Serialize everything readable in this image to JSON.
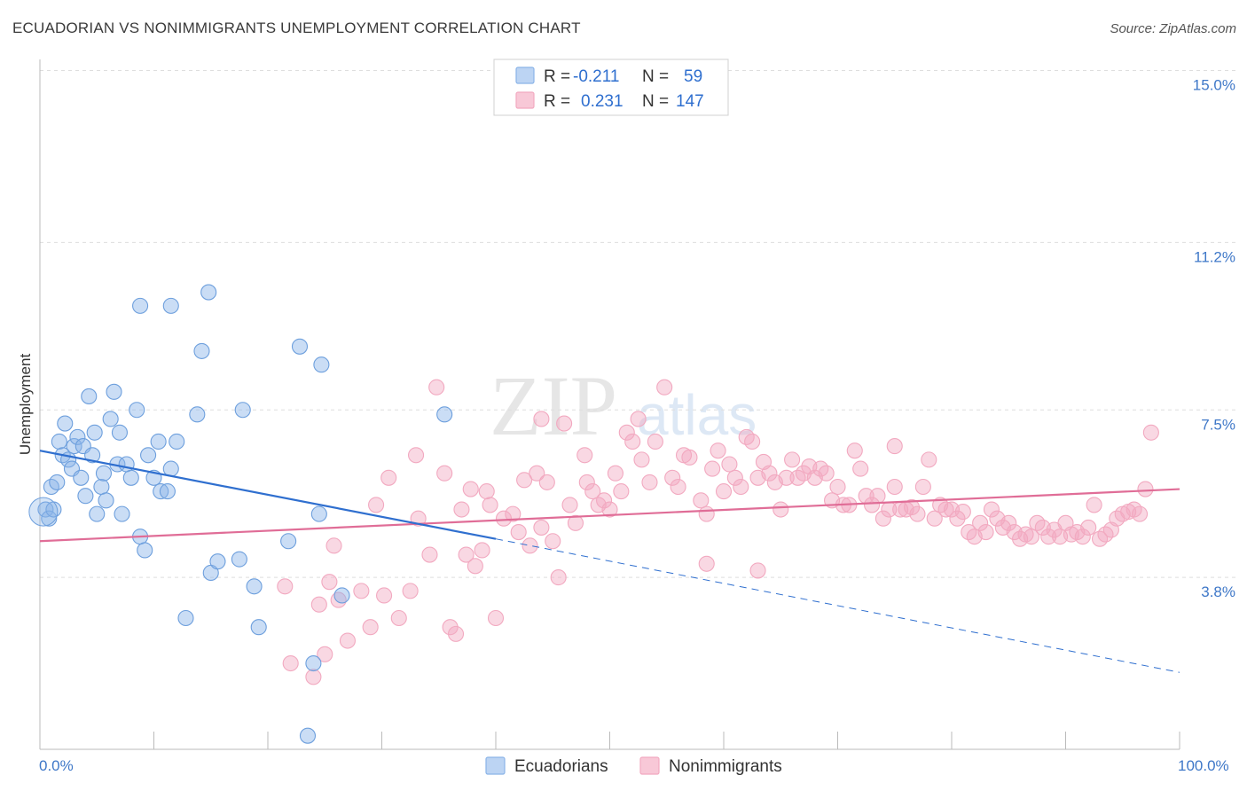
{
  "header": {
    "title": "ECUADORIAN VS NONIMMIGRANTS UNEMPLOYMENT CORRELATION CHART",
    "source": "Source: ZipAtlas.com"
  },
  "watermark": {
    "zip": "ZIP",
    "atlas": "atlas"
  },
  "legend": {
    "rows": [
      {
        "r_label": "R =",
        "r_value": "-0.211",
        "n_label": "N =",
        "n_value": "59"
      },
      {
        "r_label": "R =",
        "r_value": "0.231",
        "n_label": "N =",
        "n_value": "147"
      }
    ]
  },
  "chart_data": {
    "type": "scatter",
    "ylabel": "Unemployment",
    "xlim": [
      0,
      100
    ],
    "ylim": [
      0,
      15
    ],
    "x_tick_labels": [
      "0.0%",
      "100.0%"
    ],
    "y_ticks": [
      {
        "value": 3.8,
        "label": "3.8%"
      },
      {
        "value": 7.5,
        "label": "7.5%"
      },
      {
        "value": 11.2,
        "label": "11.2%"
      },
      {
        "value": 15.0,
        "label": "15.0%"
      }
    ],
    "grid": true,
    "colors": {
      "ecuadorians": "#8ab4e8",
      "ecuadorians_line": "#2f6fcf",
      "nonimmigrants": "#f2a9c0",
      "nonimmigrants_line": "#e06d97"
    },
    "series": [
      {
        "name": "Ecuadorians",
        "trend": {
          "x0": 0,
          "y0": 6.6,
          "x1": 40,
          "y1": 4.65,
          "dash_to_x": 100,
          "dash_to_y": 1.7
        },
        "points": [
          [
            0.5,
            5.3
          ],
          [
            0.8,
            5.1
          ],
          [
            1.0,
            5.8
          ],
          [
            1.2,
            5.3
          ],
          [
            1.5,
            5.9
          ],
          [
            1.7,
            6.8
          ],
          [
            2.0,
            6.5
          ],
          [
            2.2,
            7.2
          ],
          [
            2.5,
            6.4
          ],
          [
            2.8,
            6.2
          ],
          [
            3.0,
            6.7
          ],
          [
            3.3,
            6.9
          ],
          [
            3.6,
            6.0
          ],
          [
            3.8,
            6.7
          ],
          [
            4.0,
            5.6
          ],
          [
            4.3,
            7.8
          ],
          [
            4.6,
            6.5
          ],
          [
            4.8,
            7.0
          ],
          [
            5.0,
            5.2
          ],
          [
            5.4,
            5.8
          ],
          [
            5.6,
            6.1
          ],
          [
            5.8,
            5.5
          ],
          [
            6.2,
            7.3
          ],
          [
            6.5,
            7.9
          ],
          [
            6.8,
            6.3
          ],
          [
            7.0,
            7.0
          ],
          [
            7.2,
            5.2
          ],
          [
            7.6,
            6.3
          ],
          [
            8.0,
            6.0
          ],
          [
            8.5,
            7.5
          ],
          [
            8.8,
            4.7
          ],
          [
            9.2,
            4.4
          ],
          [
            9.5,
            6.5
          ],
          [
            10.0,
            6.0
          ],
          [
            10.4,
            6.8
          ],
          [
            10.6,
            5.7
          ],
          [
            11.2,
            5.7
          ],
          [
            11.5,
            6.2
          ],
          [
            12.0,
            6.8
          ],
          [
            12.8,
            2.9
          ],
          [
            13.8,
            7.4
          ],
          [
            14.2,
            8.8
          ],
          [
            15.0,
            3.9
          ],
          [
            15.6,
            4.15
          ],
          [
            17.5,
            4.2
          ],
          [
            17.8,
            7.5
          ],
          [
            18.8,
            3.6
          ],
          [
            19.2,
            2.7
          ],
          [
            21.8,
            4.6
          ],
          [
            22.8,
            8.9
          ],
          [
            23.5,
            0.3
          ],
          [
            24.0,
            1.9
          ],
          [
            24.5,
            5.2
          ],
          [
            24.7,
            8.5
          ],
          [
            26.5,
            3.4
          ],
          [
            35.5,
            7.4
          ],
          [
            8.8,
            9.8
          ],
          [
            11.5,
            9.8
          ],
          [
            14.8,
            10.1
          ]
        ]
      },
      {
        "name": "Nonimmigrants",
        "trend": {
          "x0": 0,
          "y0": 4.6,
          "x1": 100,
          "y1": 5.75
        },
        "points": [
          [
            21.5,
            3.6
          ],
          [
            22.0,
            1.9
          ],
          [
            24.0,
            1.6
          ],
          [
            24.5,
            3.2
          ],
          [
            25.0,
            2.1
          ],
          [
            25.4,
            3.7
          ],
          [
            25.8,
            4.5
          ],
          [
            26.2,
            3.3
          ],
          [
            27.0,
            2.4
          ],
          [
            28.2,
            3.5
          ],
          [
            29.0,
            2.7
          ],
          [
            29.5,
            5.4
          ],
          [
            30.2,
            3.4
          ],
          [
            30.6,
            6.0
          ],
          [
            31.5,
            2.9
          ],
          [
            32.5,
            3.5
          ],
          [
            33.2,
            5.1
          ],
          [
            34.2,
            4.3
          ],
          [
            34.8,
            8.0
          ],
          [
            35.5,
            6.1
          ],
          [
            36.0,
            2.7
          ],
          [
            36.5,
            2.55
          ],
          [
            37.4,
            4.3
          ],
          [
            37.8,
            5.75
          ],
          [
            38.2,
            4.05
          ],
          [
            38.8,
            4.4
          ],
          [
            39.2,
            5.7
          ],
          [
            39.5,
            5.4
          ],
          [
            40.0,
            2.9
          ],
          [
            40.7,
            5.1
          ],
          [
            41.5,
            5.2
          ],
          [
            42.0,
            4.8
          ],
          [
            42.5,
            5.95
          ],
          [
            43.0,
            4.5
          ],
          [
            43.6,
            6.1
          ],
          [
            44.0,
            4.9
          ],
          [
            44.5,
            5.9
          ],
          [
            45.0,
            4.6
          ],
          [
            45.5,
            3.8
          ],
          [
            46.0,
            7.2
          ],
          [
            46.5,
            5.4
          ],
          [
            47.0,
            5.0
          ],
          [
            47.8,
            6.5
          ],
          [
            48.0,
            5.9
          ],
          [
            48.5,
            5.7
          ],
          [
            49.0,
            5.4
          ],
          [
            49.5,
            5.5
          ],
          [
            50.0,
            5.3
          ],
          [
            50.5,
            6.1
          ],
          [
            51.0,
            5.7
          ],
          [
            51.5,
            7.0
          ],
          [
            52.0,
            6.8
          ],
          [
            52.5,
            7.3
          ],
          [
            52.8,
            6.4
          ],
          [
            53.5,
            5.9
          ],
          [
            54.0,
            6.8
          ],
          [
            54.8,
            8.0
          ],
          [
            55.5,
            6.0
          ],
          [
            56.0,
            5.8
          ],
          [
            56.5,
            6.5
          ],
          [
            57.0,
            6.45
          ],
          [
            58.0,
            5.5
          ],
          [
            58.5,
            5.2
          ],
          [
            59.0,
            6.2
          ],
          [
            59.5,
            6.6
          ],
          [
            60.0,
            5.7
          ],
          [
            60.5,
            6.3
          ],
          [
            61.0,
            6.0
          ],
          [
            61.5,
            5.8
          ],
          [
            62.0,
            6.9
          ],
          [
            62.5,
            6.8
          ],
          [
            63.0,
            6.0
          ],
          [
            63.5,
            6.35
          ],
          [
            64.0,
            6.1
          ],
          [
            64.5,
            5.9
          ],
          [
            65.0,
            5.3
          ],
          [
            65.5,
            6.0
          ],
          [
            66.0,
            6.4
          ],
          [
            66.5,
            6.0
          ],
          [
            67.0,
            6.1
          ],
          [
            67.5,
            6.25
          ],
          [
            68.0,
            6.0
          ],
          [
            68.5,
            6.2
          ],
          [
            69.0,
            6.1
          ],
          [
            69.5,
            5.5
          ],
          [
            70.0,
            5.8
          ],
          [
            70.5,
            5.4
          ],
          [
            71.0,
            5.4
          ],
          [
            71.5,
            6.6
          ],
          [
            72.0,
            6.2
          ],
          [
            72.5,
            5.6
          ],
          [
            73.0,
            5.4
          ],
          [
            73.5,
            5.6
          ],
          [
            74.0,
            5.1
          ],
          [
            74.5,
            5.3
          ],
          [
            75.0,
            5.8
          ],
          [
            75.5,
            5.3
          ],
          [
            76.0,
            5.3
          ],
          [
            76.5,
            5.35
          ],
          [
            77.0,
            5.2
          ],
          [
            77.5,
            5.8
          ],
          [
            78.0,
            6.4
          ],
          [
            78.5,
            5.1
          ],
          [
            79.0,
            5.4
          ],
          [
            79.5,
            5.3
          ],
          [
            80.0,
            5.3
          ],
          [
            80.5,
            5.1
          ],
          [
            81.0,
            5.25
          ],
          [
            81.5,
            4.8
          ],
          [
            82.0,
            4.7
          ],
          [
            82.5,
            5.0
          ],
          [
            83.0,
            4.8
          ],
          [
            83.5,
            5.3
          ],
          [
            84.0,
            5.1
          ],
          [
            84.5,
            4.9
          ],
          [
            85.0,
            5.0
          ],
          [
            85.5,
            4.8
          ],
          [
            86.0,
            4.65
          ],
          [
            86.5,
            4.75
          ],
          [
            87.0,
            4.7
          ],
          [
            87.5,
            5.0
          ],
          [
            88.0,
            4.9
          ],
          [
            88.5,
            4.7
          ],
          [
            89.0,
            4.85
          ],
          [
            89.5,
            4.7
          ],
          [
            90.0,
            5.0
          ],
          [
            90.5,
            4.75
          ],
          [
            91.0,
            4.8
          ],
          [
            91.5,
            4.7
          ],
          [
            92.0,
            4.9
          ],
          [
            92.5,
            5.4
          ],
          [
            93.0,
            4.65
          ],
          [
            93.5,
            4.75
          ],
          [
            94.0,
            4.85
          ],
          [
            94.5,
            5.1
          ],
          [
            95.0,
            5.2
          ],
          [
            95.5,
            5.25
          ],
          [
            96.0,
            5.3
          ],
          [
            96.5,
            5.2
          ],
          [
            97.0,
            5.75
          ],
          [
            97.5,
            7.0
          ],
          [
            37.0,
            5.3
          ],
          [
            44.0,
            7.3
          ],
          [
            58.5,
            4.1
          ],
          [
            63.0,
            3.95
          ],
          [
            33.0,
            6.5
          ],
          [
            75.0,
            6.7
          ]
        ]
      }
    ]
  }
}
